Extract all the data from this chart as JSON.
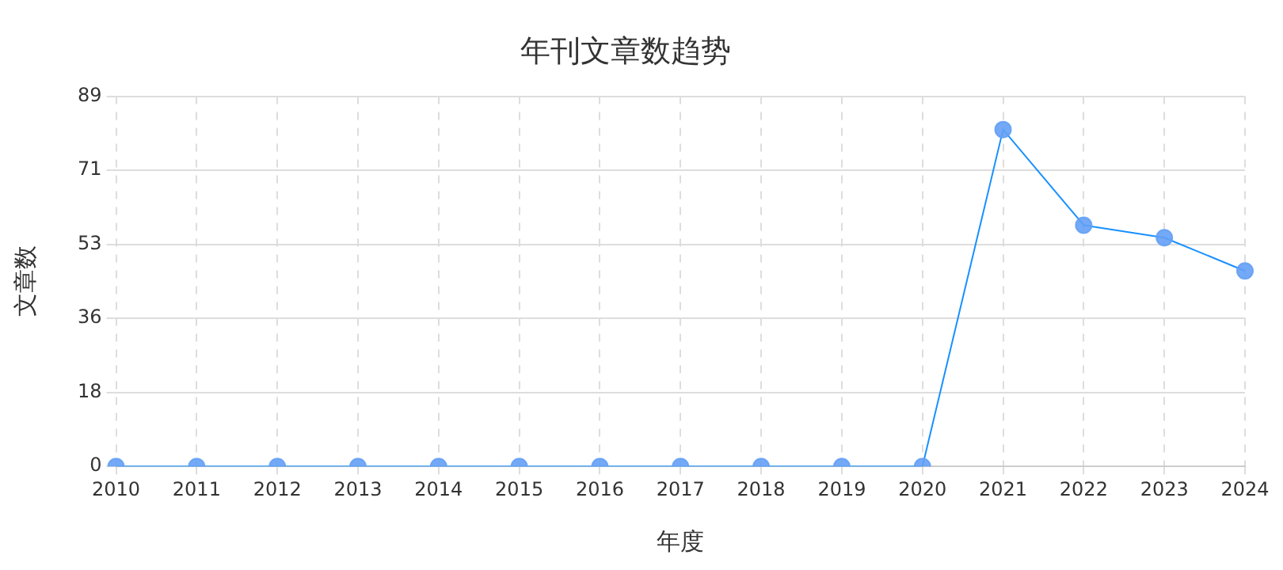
{
  "chart_data": {
    "type": "line",
    "title": "年刊文章数趋势",
    "xlabel": "年度",
    "ylabel": "文章数",
    "categories": [
      "2010",
      "2011",
      "2012",
      "2013",
      "2014",
      "2015",
      "2016",
      "2017",
      "2018",
      "2019",
      "2020",
      "2021",
      "2022",
      "2023",
      "2024"
    ],
    "series": [
      {
        "color": "#1890ff",
        "values": [
          0,
          0,
          0,
          0,
          0,
          0,
          0,
          0,
          0,
          0,
          0,
          81,
          58,
          55,
          47
        ]
      }
    ],
    "ylim": [
      0,
      89
    ],
    "yticks": [
      0,
      {
        "value": 17.8,
        "label": "18"
      },
      {
        "value": 35.6,
        "label": "36"
      },
      {
        "value": 53.4,
        "label": "53"
      },
      {
        "value": 71.2,
        "label": "71"
      },
      89
    ],
    "grid": true,
    "legend": false,
    "marker": "circle",
    "line_style": "solid"
  }
}
